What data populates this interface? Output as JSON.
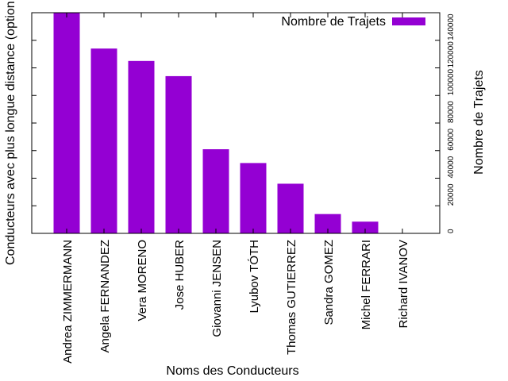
{
  "chart_data": {
    "type": "bar",
    "title": "",
    "xlabel": "Noms des Conducteurs",
    "ylabel_left": "Conducteurs avec plus longue distance (option",
    "ylabel_right": "Nombre de Trajets",
    "legend": {
      "label": "Nombre de Trajets",
      "placement": "top-right"
    },
    "bar_color": "#9400d3",
    "categories": [
      "Andrea ZIMMERMANN",
      "Angela FERNANDEZ",
      "Vera MORENO",
      "Jose HUBER",
      "Giovanni JENSEN",
      "Lyubov TÓTH",
      "Thomas GUTIERREZ",
      "Sandra GOMEZ",
      "Michel FERRARI",
      "Richard IVANOV"
    ],
    "values": [
      160000,
      134000,
      125000,
      114000,
      61000,
      51000,
      36000,
      14000,
      8500,
      0
    ],
    "y_axis_side": "right",
    "ylim": [
      0,
      160000
    ],
    "yticks": [
      "0",
      "20000",
      "40000",
      "60000",
      "80000",
      "100000",
      "120000",
      "140000"
    ],
    "grid": false
  }
}
